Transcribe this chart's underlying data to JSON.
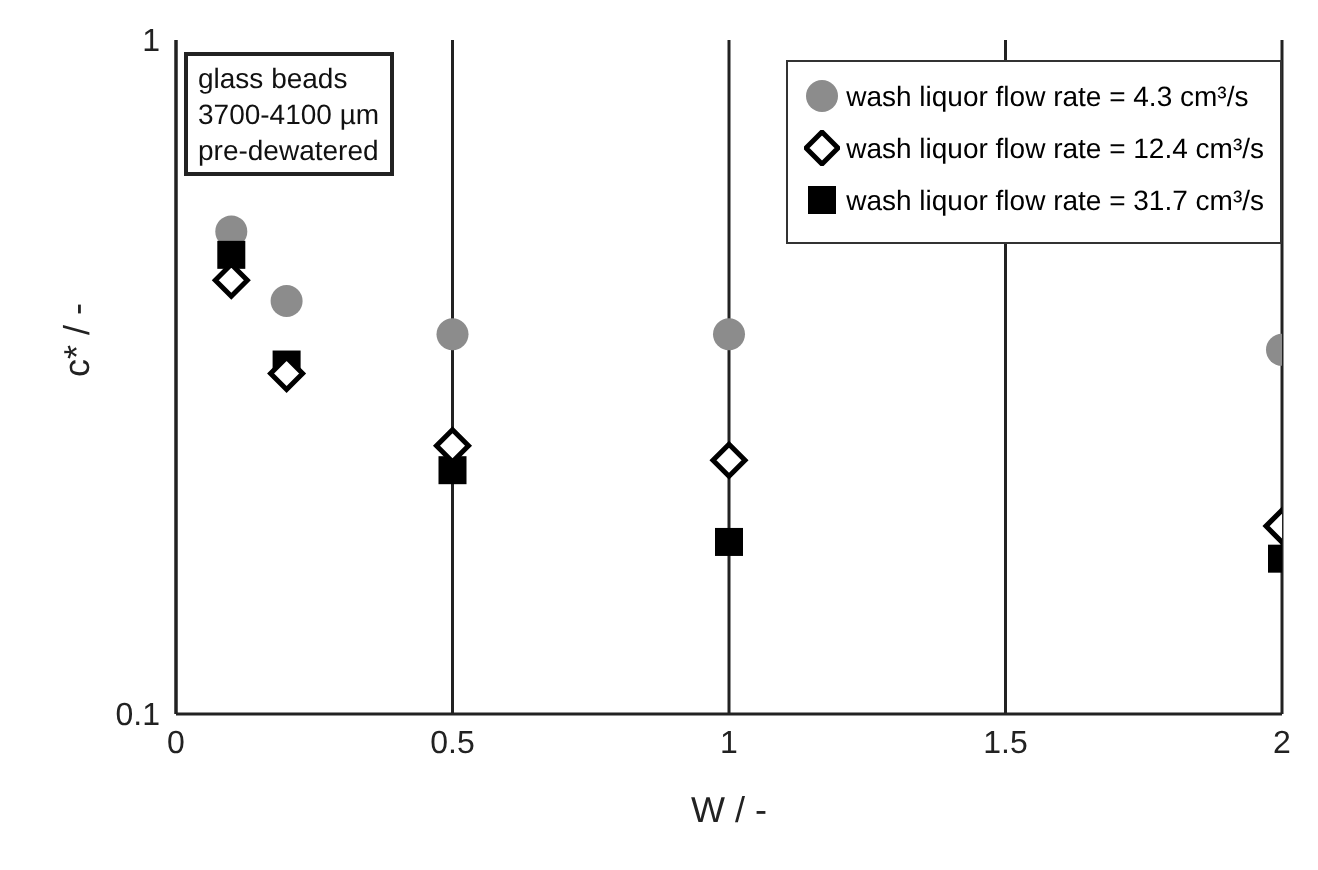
{
  "chart_data": {
    "type": "scatter",
    "xlabel": "W / -",
    "ylabel": "c* / -",
    "x": [
      0.1,
      0.2,
      0.5,
      1,
      2
    ],
    "series": [
      {
        "name": "wash liquor flow rate = 4.3 cm³/s",
        "color": "#8c8c8c",
        "marker": "circle",
        "values": [
          0.52,
          0.41,
          0.366,
          0.366,
          0.347
        ]
      },
      {
        "name": "wash liquor flow rate = 12.4 cm³/s",
        "color": "#000000",
        "marker": "diamond",
        "values": [
          0.44,
          0.32,
          0.25,
          0.238,
          0.19
        ]
      },
      {
        "name": "wash liquor flow rate = 31.7 cm³/s",
        "color": "#000000",
        "marker": "square",
        "values": [
          0.48,
          0.33,
          0.23,
          0.18,
          0.17
        ]
      }
    ],
    "xlim": [
      0,
      2
    ],
    "xticks": [
      0,
      0.5,
      1,
      1.5,
      2
    ],
    "ylim": [
      0.1,
      1
    ],
    "yticks": [
      0.1,
      1
    ],
    "log": "y",
    "grid": "x",
    "legend": "top right",
    "annotations": [
      "glass beads",
      "3700-4100 µm",
      "pre-dewatered"
    ]
  }
}
